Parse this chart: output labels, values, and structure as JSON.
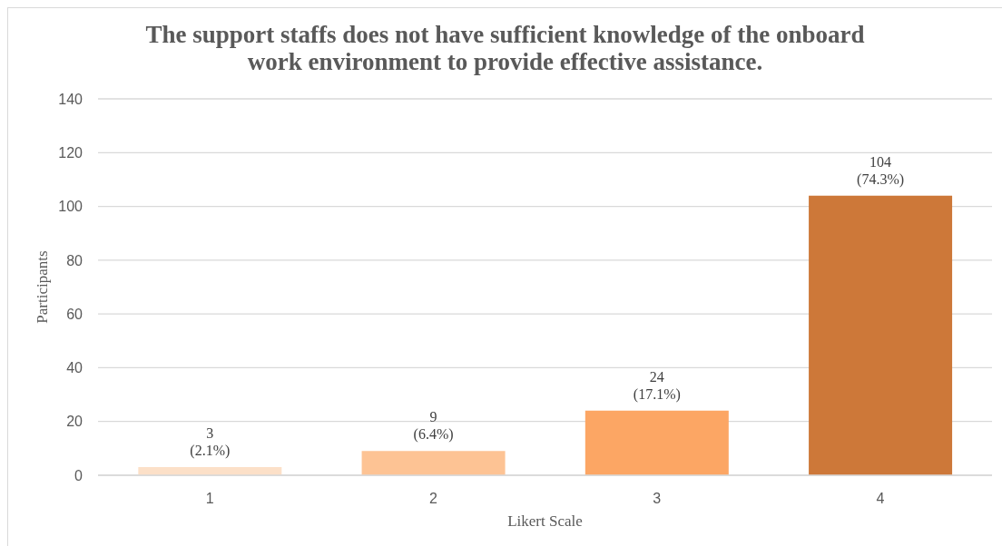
{
  "chart_data": {
    "type": "bar",
    "title": "The support staffs does not have sufficient knowledge of the onboard\nwork environment to provide effective assistance.",
    "xlabel": "Likert Scale",
    "ylabel": "Participants",
    "categories": [
      "1",
      "2",
      "3",
      "4"
    ],
    "values": [
      3,
      9,
      24,
      104
    ],
    "colors": [
      "#fce0c8",
      "#fdc394",
      "#fca664",
      "#cd7839"
    ],
    "value_labels": [
      "3\n(2.1%)",
      "9\n(6.4%)",
      "24\n(17.1%)",
      "104\n(74.3%)"
    ],
    "ylim": [
      0,
      140
    ],
    "yticks": [
      0,
      20,
      40,
      60,
      80,
      100,
      120,
      140
    ],
    "grid": "y"
  }
}
